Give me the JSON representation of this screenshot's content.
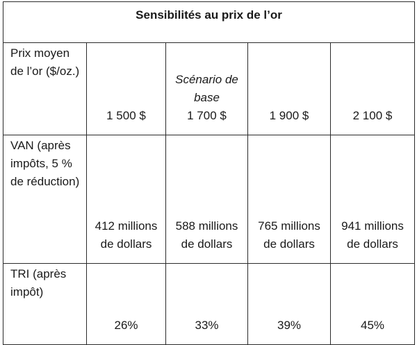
{
  "table": {
    "title": "Sensibilités au prix de l’or",
    "header": {
      "label": "Prix moyen de l’or ($/oz.)",
      "scenario_label": "Scénario de base",
      "prices": [
        "1 500 $",
        "1 700 $",
        "1 900 $",
        "2 100 $"
      ]
    },
    "rows": [
      {
        "label": "VAN (après impôts, 5 % de réduction)",
        "values": [
          "412 millions de dollars",
          "588 millions de dollars",
          "765 millions de dollars",
          "941 millions de dollars"
        ]
      },
      {
        "label": "TRI (après impôt)",
        "values": [
          "26%",
          "33%",
          "39%",
          "45%"
        ]
      }
    ]
  }
}
